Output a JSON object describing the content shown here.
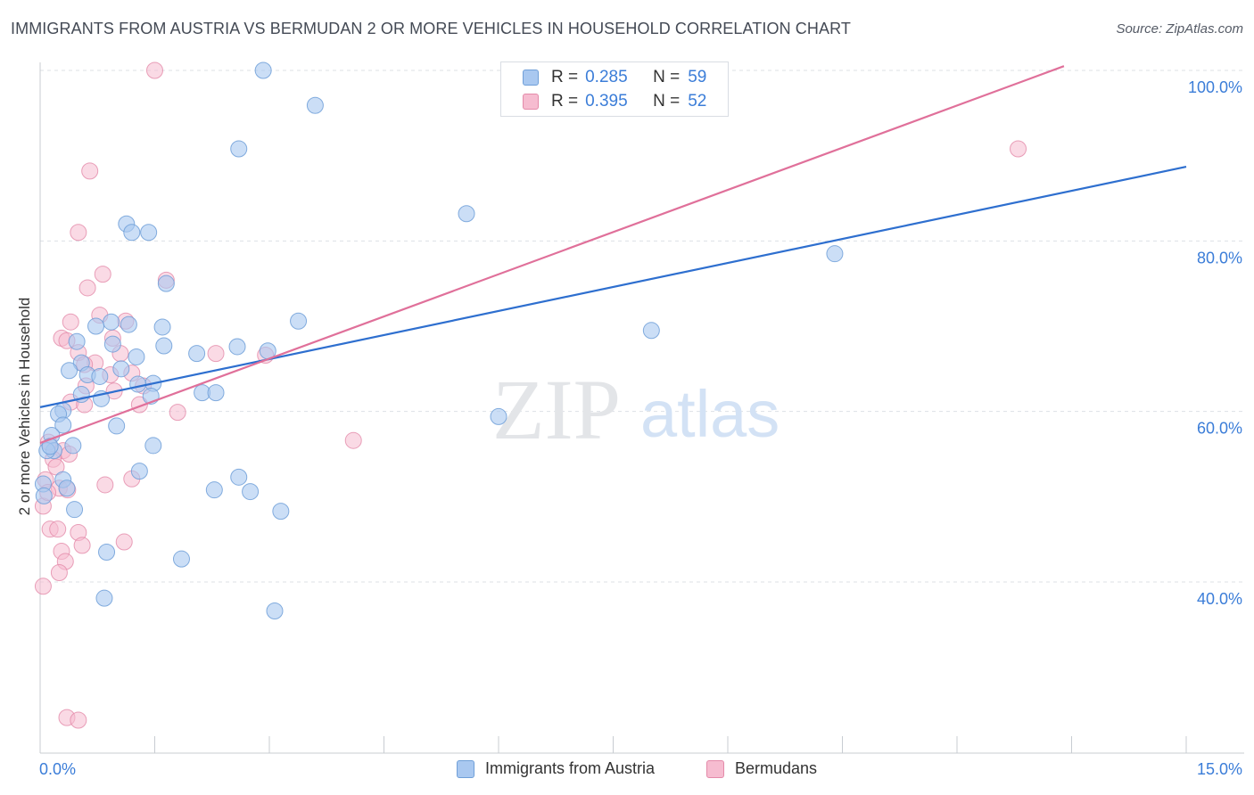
{
  "header": {
    "title": "IMMIGRANTS FROM AUSTRIA VS BERMUDAN 2 OR MORE VEHICLES IN HOUSEHOLD CORRELATION CHART",
    "source": "Source: ZipAtlas.com"
  },
  "legend": {
    "rows": [
      {
        "r_label": "R =",
        "r_value": "0.285",
        "n_label": "N =",
        "n_value": "59"
      },
      {
        "r_label": "R =",
        "r_value": "0.395",
        "n_label": "N =",
        "n_value": "52"
      }
    ]
  },
  "bottom_legend": [
    "Immigrants from Austria",
    "Bermudans"
  ],
  "watermark": {
    "zip": "ZIP",
    "atlas": "atlas"
  },
  "colors": {
    "blue_fill": "#a9c8f0",
    "blue_stroke": "#6f9fd8",
    "blue_line": "#2e6fcf",
    "pink_fill": "#f6bcd0",
    "pink_stroke": "#e48aa9",
    "pink_line": "#e0709a",
    "axis_text": "#3b7dd8",
    "grid": "#dde1e6"
  },
  "chart_data": {
    "type": "scatter",
    "title": "IMMIGRANTS FROM AUSTRIA VS BERMUDAN 2 OR MORE VEHICLES IN HOUSEHOLD CORRELATION CHART",
    "xlabel": "",
    "ylabel": "2 or more Vehicles in Household",
    "xlim": [
      0,
      15
    ],
    "ylim": [
      20,
      102
    ],
    "x_tick_labels": [
      "0.0%",
      "15.0%"
    ],
    "y_ticks": [
      40,
      60,
      80,
      100
    ],
    "y_tick_labels": [
      "40.0%",
      "60.0%",
      "80.0%",
      "100.0%"
    ],
    "legend_position": "top-center",
    "series": [
      {
        "name": "Immigrants from Austria",
        "R": 0.285,
        "N": 59,
        "trend": {
          "x": [
            0,
            15
          ],
          "y": [
            60.5,
            88.7
          ]
        },
        "points": [
          [
            2.92,
            100.0
          ],
          [
            3.6,
            95.9
          ],
          [
            2.6,
            90.8
          ],
          [
            5.58,
            83.2
          ],
          [
            1.13,
            82.0
          ],
          [
            1.42,
            81.0
          ],
          [
            1.2,
            81.0
          ],
          [
            10.4,
            78.5
          ],
          [
            1.65,
            75.0
          ],
          [
            3.38,
            70.6
          ],
          [
            0.93,
            70.5
          ],
          [
            1.16,
            70.2
          ],
          [
            0.73,
            70.0
          ],
          [
            1.6,
            69.9
          ],
          [
            8.0,
            69.5
          ],
          [
            0.48,
            68.2
          ],
          [
            0.95,
            67.9
          ],
          [
            1.62,
            67.7
          ],
          [
            2.58,
            67.6
          ],
          [
            2.98,
            67.1
          ],
          [
            2.05,
            66.8
          ],
          [
            1.26,
            66.4
          ],
          [
            0.54,
            65.7
          ],
          [
            1.06,
            65.0
          ],
          [
            0.38,
            64.8
          ],
          [
            0.62,
            64.3
          ],
          [
            0.78,
            64.1
          ],
          [
            1.48,
            63.3
          ],
          [
            1.28,
            63.2
          ],
          [
            0.54,
            62.0
          ],
          [
            2.12,
            62.2
          ],
          [
            2.3,
            62.2
          ],
          [
            1.45,
            61.8
          ],
          [
            0.8,
            61.5
          ],
          [
            0.3,
            60.1
          ],
          [
            0.24,
            59.7
          ],
          [
            6.0,
            59.4
          ],
          [
            1.0,
            58.3
          ],
          [
            0.3,
            58.4
          ],
          [
            0.15,
            57.2
          ],
          [
            0.43,
            56.0
          ],
          [
            1.48,
            56.0
          ],
          [
            0.18,
            55.4
          ],
          [
            0.09,
            55.4
          ],
          [
            1.3,
            53.0
          ],
          [
            2.6,
            52.3
          ],
          [
            0.3,
            52.0
          ],
          [
            0.04,
            51.5
          ],
          [
            2.28,
            50.8
          ],
          [
            2.75,
            50.6
          ],
          [
            0.05,
            50.1
          ],
          [
            0.45,
            48.5
          ],
          [
            3.15,
            48.3
          ],
          [
            0.87,
            43.5
          ],
          [
            1.85,
            42.7
          ],
          [
            0.84,
            38.1
          ],
          [
            3.07,
            36.6
          ],
          [
            0.13,
            55.9
          ],
          [
            0.35,
            51.0
          ]
        ]
      },
      {
        "name": "Bermudans",
        "R": 0.395,
        "N": 52,
        "trend": {
          "x": [
            0,
            13.4
          ],
          "y": [
            56.3,
            100.5
          ]
        },
        "points": [
          [
            1.5,
            100.0
          ],
          [
            12.8,
            90.8
          ],
          [
            0.65,
            88.2
          ],
          [
            0.5,
            81.0
          ],
          [
            0.82,
            76.1
          ],
          [
            1.65,
            75.4
          ],
          [
            0.62,
            74.5
          ],
          [
            0.78,
            71.3
          ],
          [
            1.12,
            70.6
          ],
          [
            0.4,
            70.5
          ],
          [
            0.28,
            68.6
          ],
          [
            0.35,
            68.3
          ],
          [
            0.95,
            68.6
          ],
          [
            0.5,
            66.9
          ],
          [
            2.3,
            66.8
          ],
          [
            2.95,
            66.6
          ],
          [
            1.05,
            66.8
          ],
          [
            0.72,
            65.7
          ],
          [
            0.58,
            65.5
          ],
          [
            1.2,
            64.5
          ],
          [
            0.92,
            64.3
          ],
          [
            1.35,
            63.0
          ],
          [
            0.97,
            62.4
          ],
          [
            0.4,
            61.1
          ],
          [
            0.58,
            60.8
          ],
          [
            1.3,
            60.8
          ],
          [
            1.8,
            59.9
          ],
          [
            4.1,
            56.6
          ],
          [
            0.11,
            56.4
          ],
          [
            0.3,
            55.4
          ],
          [
            0.38,
            55.0
          ],
          [
            0.17,
            54.4
          ],
          [
            0.21,
            53.5
          ],
          [
            1.2,
            52.1
          ],
          [
            0.85,
            51.4
          ],
          [
            0.07,
            52.0
          ],
          [
            0.25,
            51.0
          ],
          [
            0.36,
            50.8
          ],
          [
            0.04,
            48.9
          ],
          [
            0.13,
            46.2
          ],
          [
            0.23,
            46.2
          ],
          [
            0.5,
            45.8
          ],
          [
            1.1,
            44.7
          ],
          [
            0.55,
            44.3
          ],
          [
            0.28,
            43.6
          ],
          [
            0.33,
            42.4
          ],
          [
            0.25,
            41.1
          ],
          [
            0.04,
            39.5
          ],
          [
            0.35,
            24.1
          ],
          [
            0.5,
            23.8
          ],
          [
            0.1,
            50.5
          ],
          [
            0.6,
            63.0
          ]
        ]
      }
    ]
  }
}
